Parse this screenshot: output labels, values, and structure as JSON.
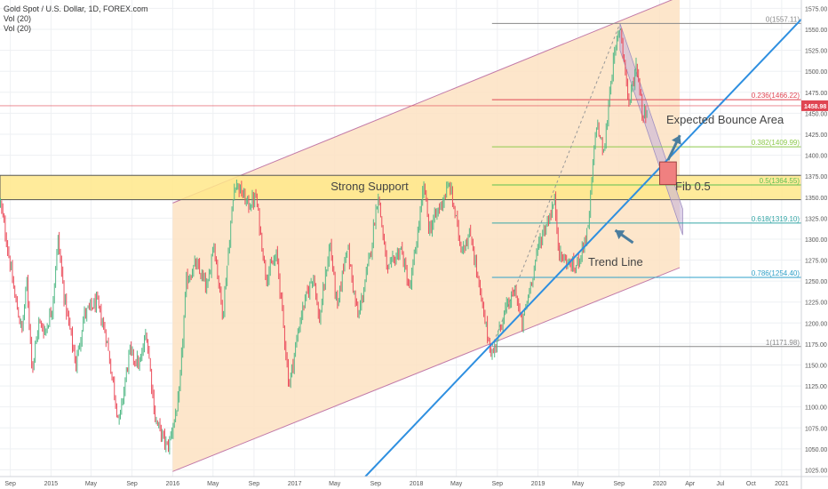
{
  "legend": {
    "title": "Gold Spot / U.S. Dollar, 1D, FOREX.com",
    "vol_1": "Vol (20)",
    "vol_2": "Vol (20)"
  },
  "colors": {
    "candle_up": "#53b987",
    "candle_down": "#eb4d5c",
    "trendline": "#2e8fe0",
    "channel_fill": "#fde2c2",
    "channel_line": "#c27aa8",
    "support_fill": "#ffe78a",
    "price_line": "#e04552",
    "fib_0": "#888888",
    "fib_236": "#e04552",
    "fib_382": "#8ec94d",
    "fib_5": "#5cbf50",
    "fib_618": "#35a7a7",
    "fib_786": "#2fa0c8",
    "fib_1": "#888888",
    "projection_fill": "#c8b4d8",
    "arrow": "#4a7d9e",
    "bounce_box": "#f08080"
  },
  "chart_data": {
    "type": "candlestick",
    "title": "Gold Spot / U.S. Dollar, 1D, FOREX.com",
    "ylim": [
      1017,
      1585
    ],
    "y_ticks": [
      1025,
      1050,
      1075,
      1100,
      1125,
      1150,
      1175,
      1200,
      1225,
      1250,
      1275,
      1300,
      1325,
      1350,
      1375,
      1400,
      1425,
      1450,
      1475,
      1500,
      1525,
      1550,
      1575
    ],
    "y_tick_labels": [
      "1025.00",
      "1050.00",
      "1075.00",
      "1100.00",
      "1125.00",
      "1150.00",
      "1175.00",
      "1200.00",
      "1225.00",
      "1250.00",
      "1275.00",
      "1300.00",
      "1325.00",
      "1350.00",
      "1375.00",
      "1400.00",
      "1425.00",
      "1450.00",
      "1475.00",
      "1500.00",
      "1525.00",
      "1550.00",
      "1575.00"
    ],
    "x_range": [
      "2014-08-01",
      "2021-03-01"
    ],
    "x_ticks": [
      {
        "date": "2014-09-01",
        "label": "Sep"
      },
      {
        "date": "2015-01-01",
        "label": "2015"
      },
      {
        "date": "2015-05-01",
        "label": "May"
      },
      {
        "date": "2015-09-01",
        "label": "Sep"
      },
      {
        "date": "2016-01-01",
        "label": "2016"
      },
      {
        "date": "2016-05-01",
        "label": "May"
      },
      {
        "date": "2016-09-01",
        "label": "Sep"
      },
      {
        "date": "2017-01-01",
        "label": "2017"
      },
      {
        "date": "2017-05-01",
        "label": "May"
      },
      {
        "date": "2017-09-01",
        "label": "Sep"
      },
      {
        "date": "2018-01-01",
        "label": "2018"
      },
      {
        "date": "2018-05-01",
        "label": "May"
      },
      {
        "date": "2018-09-01",
        "label": "Sep"
      },
      {
        "date": "2019-01-01",
        "label": "2019"
      },
      {
        "date": "2019-05-01",
        "label": "May"
      },
      {
        "date": "2019-09-01",
        "label": "Sep"
      },
      {
        "date": "2020-01-01",
        "label": "2020"
      },
      {
        "date": "2020-04-01",
        "label": "Apr"
      },
      {
        "date": "2020-07-01",
        "label": "Jul"
      },
      {
        "date": "2020-10-01",
        "label": "Oct"
      },
      {
        "date": "2021-01-01",
        "label": "2021"
      }
    ],
    "last_price": 1458.98,
    "last_price_label": "1458.98",
    "price_series": [
      [
        "2014-08-01",
        1345
      ],
      [
        "2014-08-20",
        1300
      ],
      [
        "2014-09-15",
        1230
      ],
      [
        "2014-10-06",
        1190
      ],
      [
        "2014-10-20",
        1250
      ],
      [
        "2014-11-06",
        1145
      ],
      [
        "2014-11-25",
        1200
      ],
      [
        "2014-12-15",
        1190
      ],
      [
        "2015-01-05",
        1220
      ],
      [
        "2015-01-22",
        1300
      ],
      [
        "2015-02-10",
        1230
      ],
      [
        "2015-03-17",
        1150
      ],
      [
        "2015-04-10",
        1210
      ],
      [
        "2015-05-18",
        1225
      ],
      [
        "2015-06-15",
        1185
      ],
      [
        "2015-07-24",
        1080
      ],
      [
        "2015-08-24",
        1165
      ],
      [
        "2015-09-25",
        1150
      ],
      [
        "2015-10-14",
        1190
      ],
      [
        "2015-11-10",
        1085
      ],
      [
        "2015-12-17",
        1050
      ],
      [
        "2016-01-20",
        1110
      ],
      [
        "2016-02-11",
        1250
      ],
      [
        "2016-03-10",
        1270
      ],
      [
        "2016-04-15",
        1240
      ],
      [
        "2016-05-02",
        1300
      ],
      [
        "2016-05-30",
        1210
      ],
      [
        "2016-06-24",
        1320
      ],
      [
        "2016-07-06",
        1370
      ],
      [
        "2016-08-15",
        1340
      ],
      [
        "2016-09-07",
        1350
      ],
      [
        "2016-10-07",
        1255
      ],
      [
        "2016-11-09",
        1280
      ],
      [
        "2016-12-15",
        1125
      ],
      [
        "2017-01-20",
        1210
      ],
      [
        "2017-02-27",
        1260
      ],
      [
        "2017-03-15",
        1200
      ],
      [
        "2017-04-17",
        1295
      ],
      [
        "2017-05-09",
        1215
      ],
      [
        "2017-06-06",
        1295
      ],
      [
        "2017-07-10",
        1205
      ],
      [
        "2017-08-15",
        1280
      ],
      [
        "2017-09-08",
        1355
      ],
      [
        "2017-10-06",
        1260
      ],
      [
        "2017-11-15",
        1290
      ],
      [
        "2017-12-12",
        1238
      ],
      [
        "2018-01-25",
        1365
      ],
      [
        "2018-02-08",
        1310
      ],
      [
        "2018-04-11",
        1365
      ],
      [
        "2018-05-15",
        1290
      ],
      [
        "2018-06-14",
        1305
      ],
      [
        "2018-07-19",
        1215
      ],
      [
        "2018-08-16",
        1160
      ],
      [
        "2018-09-20",
        1210
      ],
      [
        "2018-10-26",
        1240
      ],
      [
        "2018-11-13",
        1195
      ],
      [
        "2019-01-04",
        1295
      ],
      [
        "2019-02-20",
        1345
      ],
      [
        "2019-03-07",
        1280
      ],
      [
        "2019-04-23",
        1265
      ],
      [
        "2019-05-31",
        1310
      ],
      [
        "2019-06-25",
        1440
      ],
      [
        "2019-07-18",
        1400
      ],
      [
        "2019-08-07",
        1490
      ],
      [
        "2019-09-04",
        1557
      ],
      [
        "2019-10-01",
        1460
      ],
      [
        "2019-10-24",
        1510
      ],
      [
        "2019-11-12",
        1445
      ],
      [
        "2019-11-26",
        1458.98
      ]
    ],
    "annotations": {
      "strong_support": "Strong Support",
      "fib_05": "Fib 0.5",
      "expected_bounce": "Expected Bounce Area",
      "trend_line": "Trend Line"
    },
    "fib_levels": [
      {
        "ratio": 0,
        "price": 1557.11,
        "label": "0(1557.11)"
      },
      {
        "ratio": 0.236,
        "price": 1466.22,
        "label": "0.236(1466.22)"
      },
      {
        "ratio": 0.382,
        "price": 1409.99,
        "label": "0.382(1409.99)"
      },
      {
        "ratio": 0.5,
        "price": 1364.55,
        "label": "0.5(1364.55)"
      },
      {
        "ratio": 0.618,
        "price": 1319.1,
        "label": "0.618(1319.10)"
      },
      {
        "ratio": 0.786,
        "price": 1254.4,
        "label": "0.786(1254.40)"
      },
      {
        "ratio": 1,
        "price": 1171.98,
        "label": "1(1171.98)"
      }
    ],
    "fib_start_date": "2018-08-16",
    "fib_end_date": "2019-09-04",
    "support_zone": [
      1347,
      1376
    ],
    "trendline": [
      [
        "2017-08-01",
        1017
      ],
      [
        "2021-03-01",
        1562
      ]
    ],
    "channel": {
      "start_date": "2016-01-01",
      "end_date": "2020-03-01",
      "lower": [
        1023,
        1266
      ],
      "upper": [
        1343,
        1589
      ]
    },
    "projection": {
      "start_date": "2019-09-04",
      "end_date": "2020-03-10",
      "top": [
        1557,
        1336
      ],
      "bottom": [
        1525,
        1305
      ],
      "extend_top": 1470
    },
    "bounce_box": {
      "from": "2020-01-01",
      "to": "2020-02-20",
      "low": 1365,
      "high": 1392
    }
  }
}
